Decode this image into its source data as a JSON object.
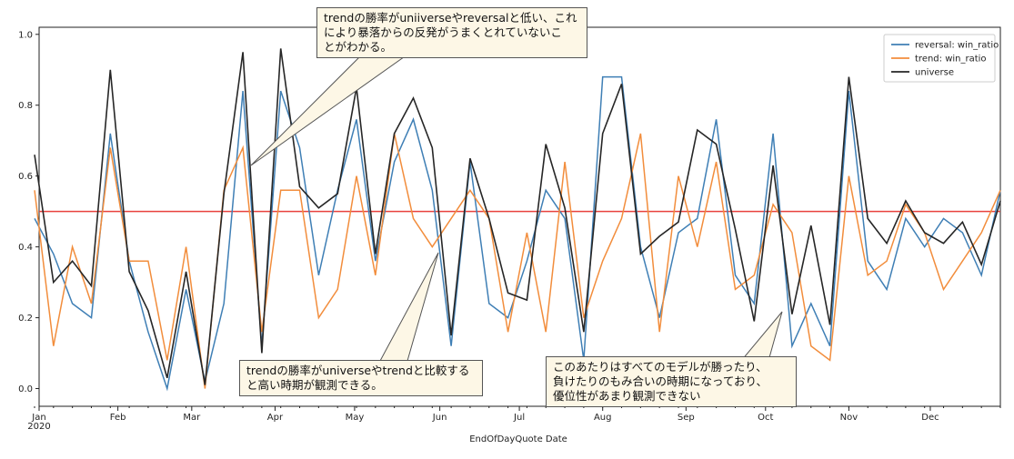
{
  "chart_data": {
    "type": "line",
    "xlabel": "EndOfDayQuote Date",
    "x_tick_labels": [
      "Jan",
      "Feb",
      "Mar",
      "Apr",
      "May",
      "Jun",
      "Jul",
      "Aug",
      "Sep",
      "Oct",
      "Nov",
      "Dec"
    ],
    "x_year_label": "2020",
    "y_tick_labels": [
      "0.0",
      "0.2",
      "0.4",
      "0.6",
      "0.8",
      "1.0"
    ],
    "ylim": [
      -0.05,
      1.02
    ],
    "reference_line": {
      "y": 0.5,
      "color": "#e8413c"
    },
    "legend_position": "top-right",
    "series": [
      {
        "name": "reversal: win_ratio",
        "color": "#3f7fb5",
        "values": [
          0.48,
          0.38,
          0.24,
          0.2,
          0.72,
          0.36,
          0.16,
          0.0,
          0.28,
          0.02,
          0.24,
          0.84,
          0.12,
          0.84,
          0.68,
          0.32,
          0.56,
          0.76,
          0.36,
          0.64,
          0.76,
          0.56,
          0.12,
          0.64,
          0.24,
          0.2,
          0.36,
          0.56,
          0.48,
          0.08,
          0.88,
          0.88,
          0.4,
          0.2,
          0.44,
          0.48,
          0.76,
          0.32,
          0.24,
          0.72,
          0.12,
          0.24,
          0.12,
          0.84,
          0.36,
          0.28,
          0.48,
          0.4,
          0.48,
          0.44,
          0.32,
          0.56
        ]
      },
      {
        "name": "trend: win_ratio",
        "color": "#f28d3c",
        "values": [
          0.56,
          0.12,
          0.4,
          0.24,
          0.68,
          0.36,
          0.36,
          0.08,
          0.4,
          0.0,
          0.56,
          0.68,
          0.16,
          0.56,
          0.56,
          0.2,
          0.28,
          0.6,
          0.32,
          0.72,
          0.48,
          0.4,
          0.48,
          0.56,
          0.48,
          0.16,
          0.44,
          0.16,
          0.64,
          0.2,
          0.36,
          0.48,
          0.72,
          0.16,
          0.6,
          0.4,
          0.64,
          0.28,
          0.32,
          0.52,
          0.44,
          0.12,
          0.08,
          0.6,
          0.32,
          0.36,
          0.52,
          0.44,
          0.28,
          0.36,
          0.44,
          0.56
        ]
      },
      {
        "name": "universe",
        "color": "#262626",
        "values": [
          0.66,
          0.3,
          0.36,
          0.29,
          0.9,
          0.33,
          0.22,
          0.03,
          0.33,
          0.01,
          0.55,
          0.95,
          0.1,
          0.96,
          0.57,
          0.51,
          0.55,
          0.85,
          0.38,
          0.72,
          0.82,
          0.68,
          0.15,
          0.65,
          0.48,
          0.27,
          0.25,
          0.69,
          0.51,
          0.16,
          0.72,
          0.86,
          0.38,
          0.43,
          0.47,
          0.73,
          0.69,
          0.45,
          0.19,
          0.63,
          0.21,
          0.46,
          0.18,
          0.88,
          0.48,
          0.41,
          0.53,
          0.44,
          0.41,
          0.47,
          0.35,
          0.53
        ]
      }
    ]
  },
  "annotations": [
    {
      "lines": [
        "trendの勝率がuniiverseやreversalと低い、これ",
        "により暴落からの反発がうまくとれていないこ",
        "とがわかる。"
      ]
    },
    {
      "lines": [
        "trendの勝率がuniverseやtrendと比較する",
        "と高い時期が観測できる。"
      ]
    },
    {
      "lines": [
        "このあたりはすべてのモデルが勝ったり、",
        "負けたりのもみ合いの時期になっており、",
        "優位性があまり観測できない"
      ]
    }
  ]
}
